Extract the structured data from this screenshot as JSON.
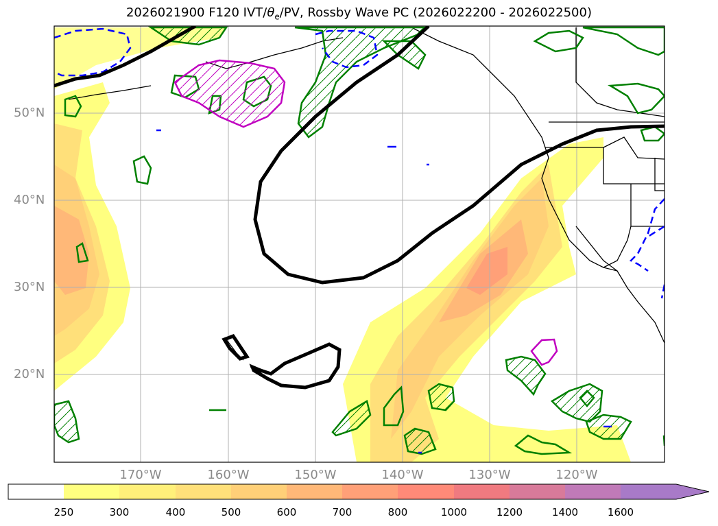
{
  "title": {
    "main": "2026021900 F120 IVT/",
    "theta": "θ",
    "theta_sub": "e",
    "rest": "/PV, Rossby Wave PC (2026022200 - 2026022500)"
  },
  "axes": {
    "lat_labels": [
      "50°N",
      "40°N",
      "30°N",
      "20°N"
    ],
    "lon_labels": [
      "170°W",
      "160°W",
      "150°W",
      "140°W",
      "130°W",
      "120°W"
    ]
  },
  "colorbar": {
    "ticks": [
      "250",
      "300",
      "400",
      "500",
      "600",
      "700",
      "800",
      "1000",
      "1200",
      "1400",
      "1600"
    ],
    "colors": [
      "#ffffff",
      "#ffff80",
      "#fff07a",
      "#ffe07a",
      "#ffd078",
      "#ffb878",
      "#ffa078",
      "#ff8a78",
      "#f07a80",
      "#d87a9a",
      "#c07ab8",
      "#a87ac8"
    ]
  },
  "contour_colors": {
    "rossby_wave": "#000000",
    "theta_e": "#008000",
    "pv_positive": "#c000c0",
    "pv_negative": "#0000ff"
  }
}
